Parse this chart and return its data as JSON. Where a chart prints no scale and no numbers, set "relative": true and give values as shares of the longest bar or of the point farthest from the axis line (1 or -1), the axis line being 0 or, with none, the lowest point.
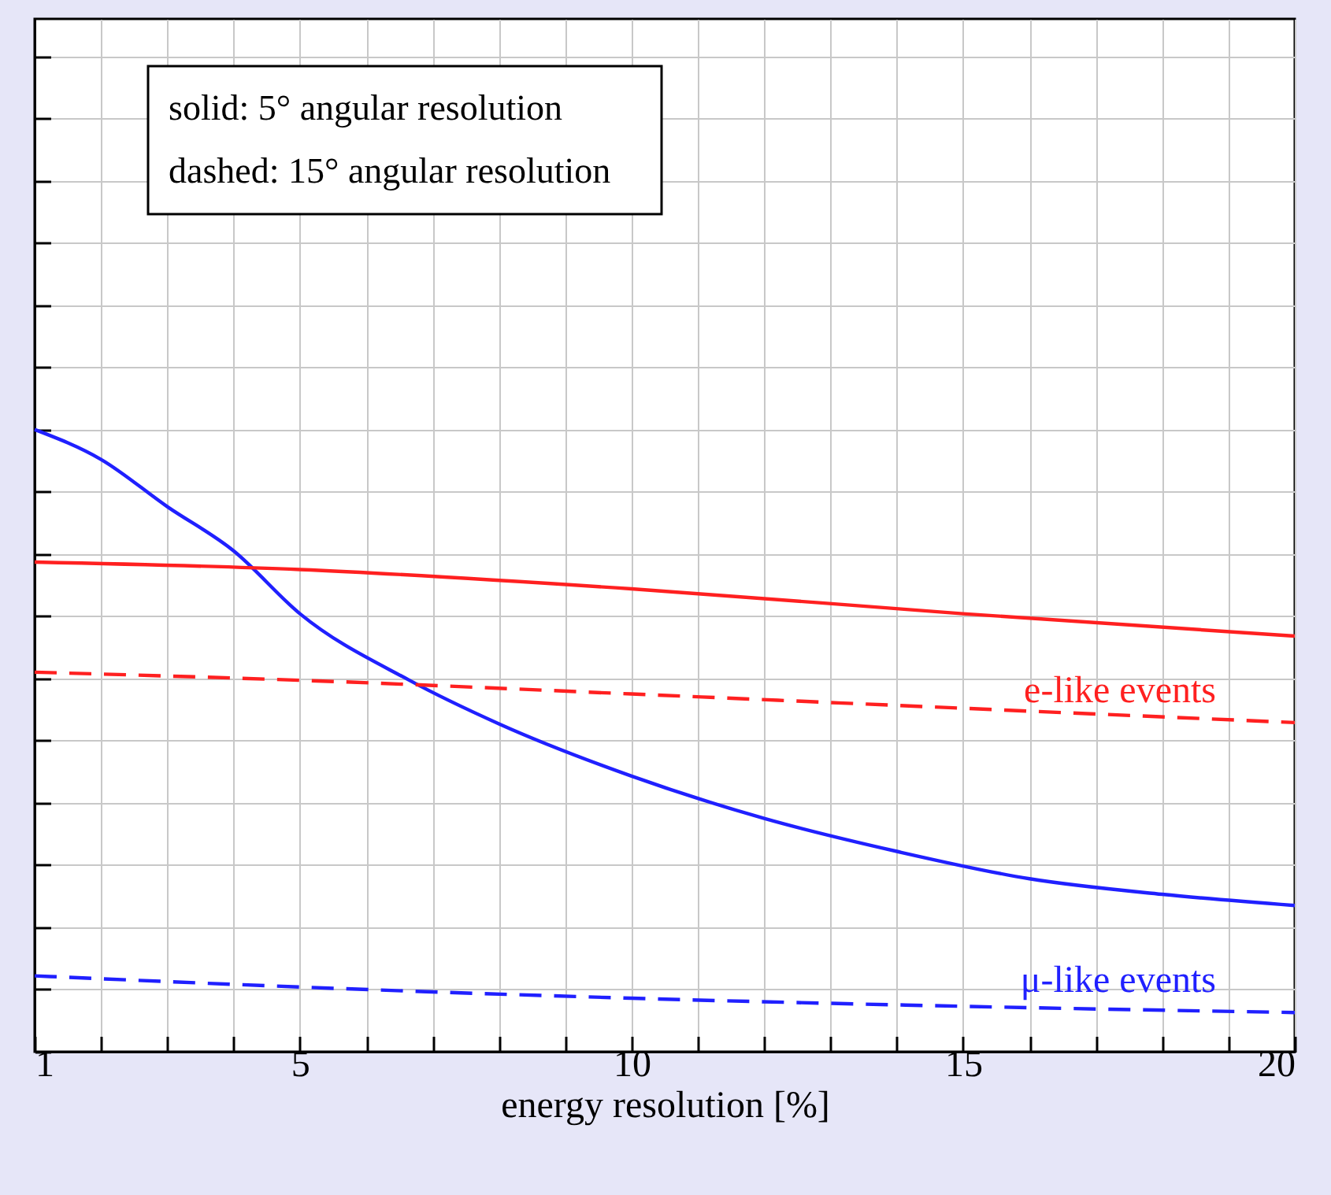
{
  "chart_data": {
    "type": "line",
    "relative": true,
    "xlabel": "energy resolution [%]",
    "xlim": [
      1,
      20
    ],
    "xticks": [
      1,
      5,
      10,
      15,
      20
    ],
    "tick_labels": "x",
    "grid": true,
    "legend": false,
    "series": [
      {
        "color": "#2020ff",
        "line_style": "solid",
        "x": [
          1,
          2,
          3,
          4,
          5,
          6.65,
          8,
          10,
          12,
          14,
          16,
          18,
          20
        ],
        "values": [
          1.0,
          0.952,
          0.876,
          0.805,
          0.704,
          0.597,
          0.527,
          0.443,
          0.375,
          0.322,
          0.278,
          0.253,
          0.235
        ]
      },
      {
        "name": "μ-like events",
        "color": "#2020ff",
        "line_style": "dashed",
        "x": [
          1,
          5,
          10,
          15,
          20
        ],
        "values": [
          0.122,
          0.104,
          0.086,
          0.073,
          0.063
        ]
      },
      {
        "color": "#ff2020",
        "line_style": "solid",
        "x": [
          1,
          5,
          10,
          15,
          20
        ],
        "values": [
          0.787,
          0.775,
          0.744,
          0.704,
          0.668
        ]
      },
      {
        "name": "e-like events",
        "color": "#ff2020",
        "line_style": "dashed",
        "x": [
          1,
          5,
          10,
          15,
          20
        ],
        "values": [
          0.61,
          0.597,
          0.575,
          0.552,
          0.529
        ]
      }
    ],
    "annotations": [
      "solid:      5° angular resolution",
      "dashed: 15° angular resolution"
    ]
  }
}
